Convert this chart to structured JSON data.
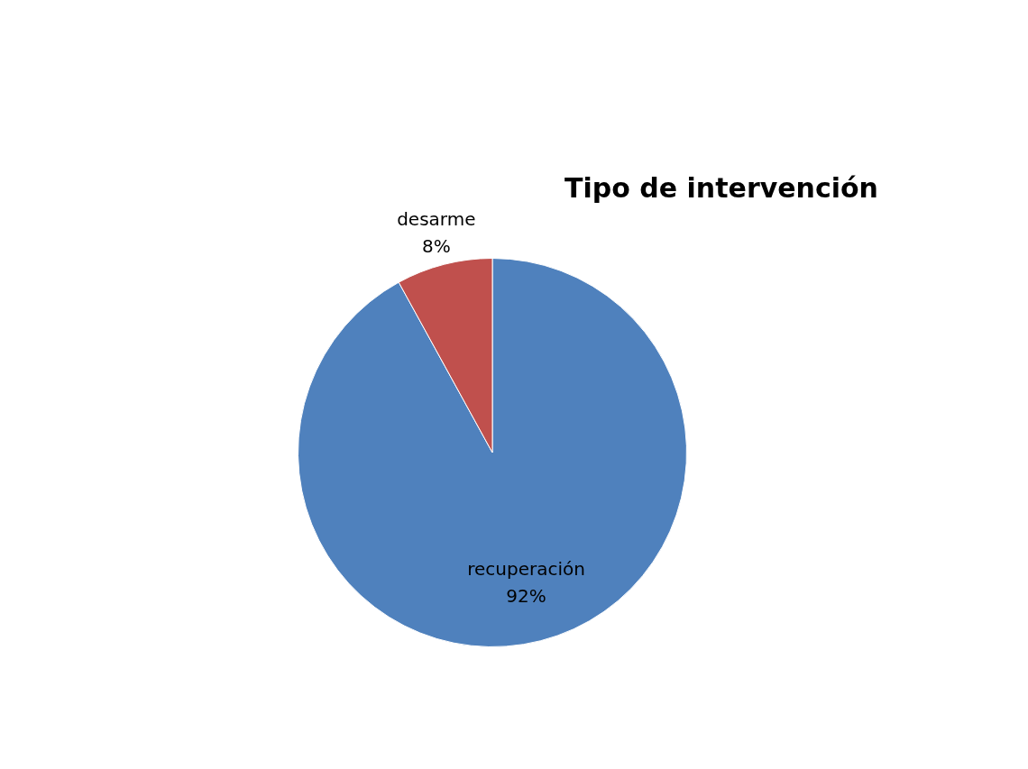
{
  "chart_data": {
    "type": "pie",
    "title": "Tipo de intervención",
    "categories": [
      "recuperación",
      "desarme"
    ],
    "values": [
      92,
      8
    ],
    "value_labels": [
      "92%",
      "8%"
    ],
    "colors": [
      "#4f81bd",
      "#c0504d"
    ],
    "legend": false
  }
}
